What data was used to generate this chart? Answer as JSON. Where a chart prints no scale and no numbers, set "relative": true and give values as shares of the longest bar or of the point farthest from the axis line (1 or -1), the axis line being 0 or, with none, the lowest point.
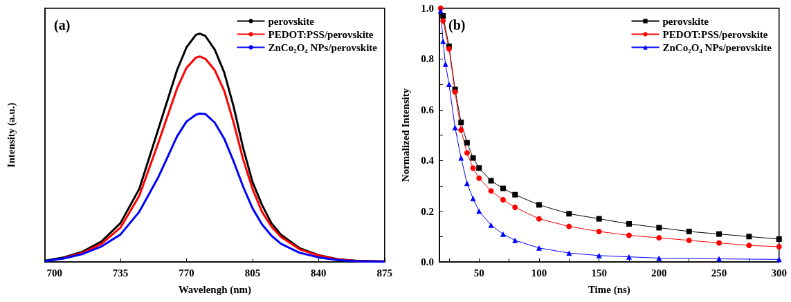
{
  "chart_data": [
    {
      "type": "line",
      "relative": true,
      "tick_labels": "x",
      "xlabel": "Wavelengh (nm)",
      "ylabel": "Intensity (a.u.)",
      "annotations": [
        "(a)"
      ],
      "legend": "top right",
      "marker": "none",
      "line_style": "solid",
      "grid": false,
      "xlim": [
        695,
        875
      ],
      "xticks": [
        700,
        735,
        770,
        805,
        840,
        875
      ],
      "x": [
        695,
        705,
        715,
        725,
        735,
        745,
        755,
        760,
        765,
        770,
        775,
        777,
        780,
        785,
        790,
        795,
        800,
        805,
        810,
        815,
        820,
        830,
        840,
        850,
        860,
        875
      ],
      "series": [
        {
          "name": "perovskite",
          "color": "#000000",
          "values": [
            0.005,
            0.02,
            0.045,
            0.09,
            0.17,
            0.32,
            0.58,
            0.71,
            0.84,
            0.94,
            0.995,
            1.0,
            0.99,
            0.93,
            0.83,
            0.68,
            0.5,
            0.35,
            0.25,
            0.17,
            0.12,
            0.06,
            0.03,
            0.012,
            0.005,
            0.002
          ]
        },
        {
          "name": "PEDOT:PSS/perovskite",
          "color": "#ff0000",
          "values": [
            null,
            0.017,
            0.04,
            0.08,
            0.15,
            0.29,
            0.52,
            0.64,
            0.76,
            0.85,
            0.895,
            0.9,
            0.89,
            0.84,
            0.75,
            0.61,
            0.45,
            0.32,
            0.22,
            0.155,
            0.11,
            0.055,
            0.028,
            0.011,
            0.004,
            0.002
          ]
        },
        {
          "name": "ZnCo₂O₄ NPs/perovskite",
          "color": "#0000ff",
          "values": [
            0.004,
            0.015,
            0.035,
            0.068,
            0.12,
            0.22,
            0.37,
            0.46,
            0.55,
            0.615,
            0.645,
            0.65,
            0.648,
            0.61,
            0.54,
            0.44,
            0.33,
            0.235,
            0.165,
            0.115,
            0.08,
            0.04,
            0.02,
            0.008,
            0.003,
            0.001
          ]
        }
      ]
    },
    {
      "type": "line",
      "xlabel": "Time (ns)",
      "ylabel": "Normalized Intensity",
      "annotations": [
        "(b)"
      ],
      "legend": "top right",
      "line_style": "solid",
      "grid": false,
      "xlim": [
        17,
        300
      ],
      "xticks": [
        {
          "value": 25,
          "label": null
        },
        50,
        {
          "value": 75,
          "label": null
        },
        100,
        {
          "value": 125,
          "label": null
        },
        150,
        {
          "value": 175,
          "label": null
        },
        200,
        {
          "value": 225,
          "label": null
        },
        250,
        {
          "value": 275,
          "label": null
        },
        300
      ],
      "ylim": [
        0,
        1
      ],
      "yticks": [
        "0.0",
        {
          "value": 0.1,
          "label": null
        },
        0.2,
        {
          "value": 0.3,
          "label": null
        },
        0.4,
        {
          "value": 0.5,
          "label": null
        },
        0.6,
        {
          "value": 0.7,
          "label": null
        },
        0.8,
        {
          "value": 0.9,
          "label": null
        },
        "1.0"
      ],
      "series": [
        {
          "name": "perovskite",
          "color": "#000000",
          "marker": "square",
          "x": [
            20,
            25,
            30,
            35,
            40,
            45,
            50,
            60,
            70,
            80,
            100,
            125,
            150,
            175,
            200,
            225,
            250,
            275,
            300
          ],
          "values": [
            0.97,
            0.85,
            0.68,
            0.55,
            0.47,
            0.41,
            0.37,
            0.32,
            0.29,
            0.265,
            0.225,
            0.19,
            0.17,
            0.15,
            0.135,
            0.12,
            0.11,
            0.1,
            0.09
          ]
        },
        {
          "name": "PEDOT:PSS/perovskite",
          "color": "#ff0000",
          "marker": "circle",
          "x": [
            18,
            20,
            25,
            30,
            35,
            40,
            45,
            50,
            60,
            70,
            80,
            100,
            125,
            150,
            175,
            200,
            225,
            250,
            275,
            300
          ],
          "values": [
            1.0,
            0.95,
            0.84,
            0.67,
            0.52,
            0.43,
            0.37,
            0.33,
            0.28,
            0.245,
            0.215,
            0.17,
            0.14,
            0.12,
            0.105,
            0.095,
            0.085,
            0.075,
            0.065,
            0.06
          ]
        },
        {
          "name": "ZnCo₂O₄ NPs/perovskite",
          "color": "#0000ff",
          "marker": "triangle",
          "x": [
            18,
            20,
            22,
            25,
            30,
            35,
            40,
            45,
            50,
            60,
            70,
            80,
            100,
            125,
            150,
            175,
            200,
            250,
            300
          ],
          "values": [
            0.99,
            0.87,
            0.78,
            0.7,
            0.53,
            0.41,
            0.31,
            0.25,
            0.2,
            0.145,
            0.11,
            0.085,
            0.055,
            0.035,
            0.025,
            0.02,
            0.015,
            0.012,
            0.01
          ]
        }
      ]
    }
  ]
}
